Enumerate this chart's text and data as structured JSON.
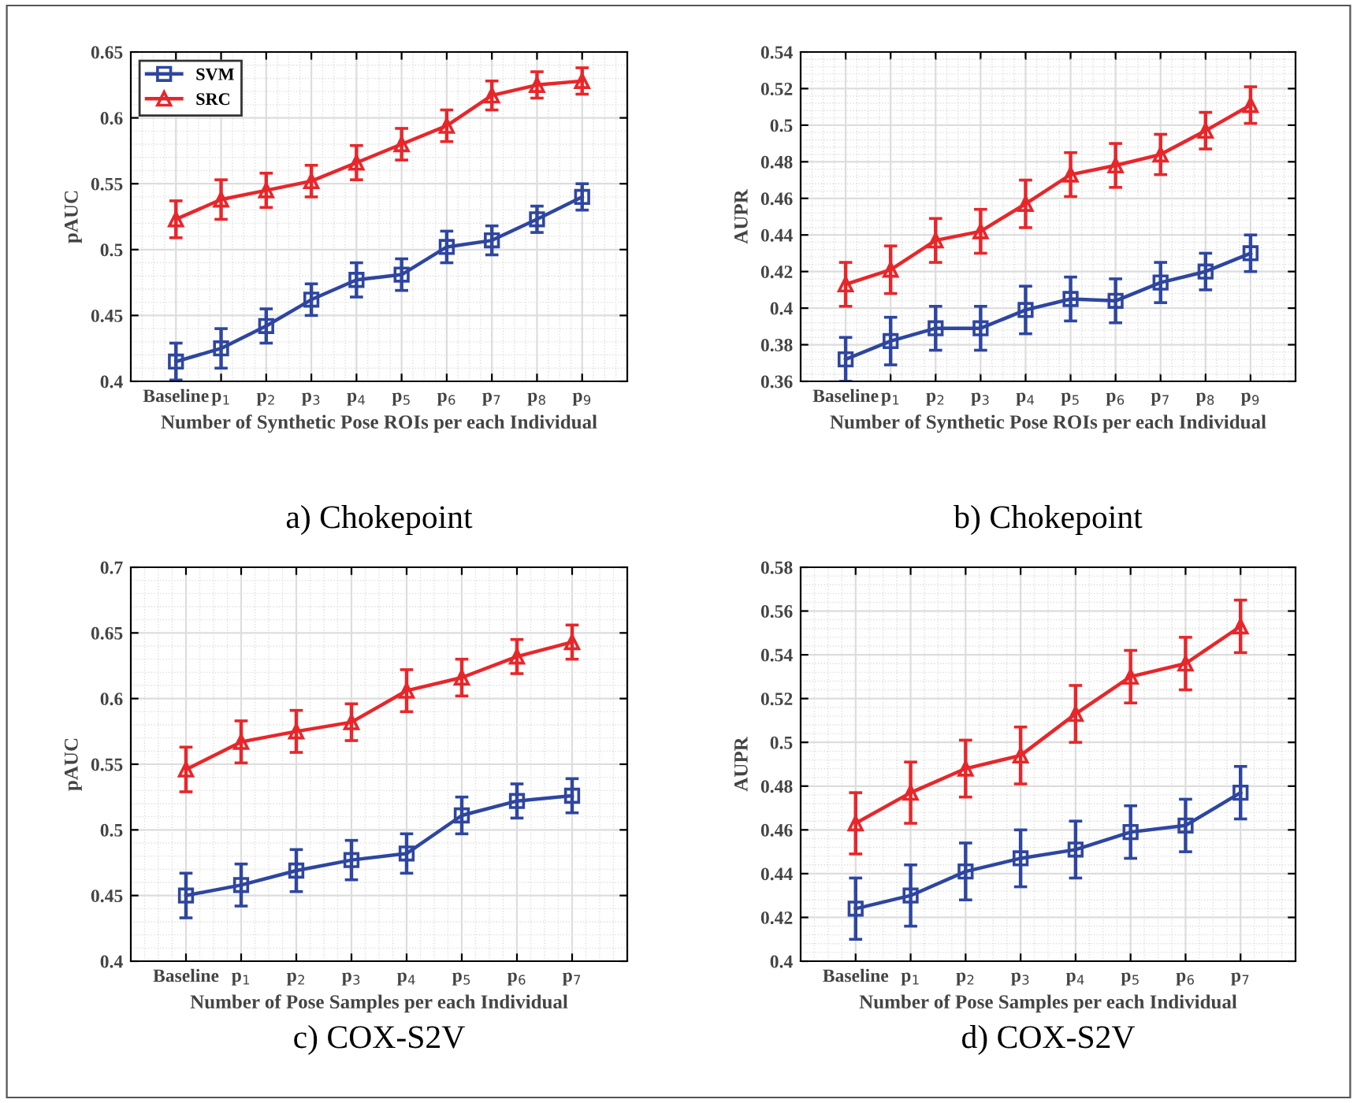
{
  "chart_data": [
    {
      "type": "line",
      "title": "a) Chokepoint",
      "xlabel": "Number of Synthetic Pose ROIs per each Individual",
      "ylabel": "pAUC",
      "categories": [
        "Baseline",
        "p$_{1}$",
        "p$_{2}$",
        "p$_{3}$",
        "p$_{4}$",
        "p$_{5}$",
        "p$_{6}$",
        "p$_{7}$",
        "p$_{8}$",
        "p$_{9}$"
      ],
      "ylim": [
        0.4,
        0.65
      ],
      "yticks": [
        0.4,
        0.45,
        0.5,
        0.55,
        0.6,
        0.65
      ],
      "grid": true,
      "legend": "top left",
      "series": [
        {
          "name": "SVM",
          "color": "#2e46a0",
          "marker": "square",
          "values": [
            0.415,
            0.425,
            0.442,
            0.462,
            0.477,
            0.481,
            0.502,
            0.507,
            0.523,
            0.54
          ],
          "errors": [
            0.014,
            0.015,
            0.013,
            0.012,
            0.013,
            0.012,
            0.012,
            0.011,
            0.01,
            0.01
          ]
        },
        {
          "name": "SRC",
          "color": "#e8262a",
          "marker": "triangle",
          "values": [
            0.523,
            0.538,
            0.545,
            0.552,
            0.566,
            0.58,
            0.594,
            0.617,
            0.625,
            0.628
          ],
          "errors": [
            0.014,
            0.015,
            0.013,
            0.012,
            0.013,
            0.012,
            0.012,
            0.011,
            0.01,
            0.01
          ]
        }
      ]
    },
    {
      "type": "line",
      "title": "b) Chokepoint",
      "xlabel": "Number of Synthetic Pose ROIs per each Individual",
      "ylabel": "AUPR",
      "categories": [
        "Baseline",
        "p$_{1}$",
        "p$_{2}$",
        "p$_{3}$",
        "p$_{4}$",
        "p$_{5}$",
        "p$_{6}$",
        "p$_{7}$",
        "p$_{8}$",
        "p$_{9}$"
      ],
      "ylim": [
        0.36,
        0.54
      ],
      "yticks": [
        0.36,
        0.38,
        0.4,
        0.42,
        0.44,
        0.46,
        0.48,
        0.5,
        0.52,
        0.54
      ],
      "grid": true,
      "series": [
        {
          "color": "#2e46a0",
          "marker": "square",
          "values": [
            0.372,
            0.382,
            0.389,
            0.389,
            0.399,
            0.405,
            0.404,
            0.414,
            0.42,
            0.43
          ],
          "errors": [
            0.012,
            0.013,
            0.012,
            0.012,
            0.013,
            0.012,
            0.012,
            0.011,
            0.01,
            0.01
          ]
        },
        {
          "color": "#e8262a",
          "marker": "triangle",
          "values": [
            0.413,
            0.421,
            0.437,
            0.442,
            0.457,
            0.473,
            0.478,
            0.484,
            0.497,
            0.511
          ],
          "errors": [
            0.012,
            0.013,
            0.012,
            0.012,
            0.013,
            0.012,
            0.012,
            0.011,
            0.01,
            0.01
          ]
        }
      ]
    },
    {
      "type": "line",
      "title": "c) COX-S2V",
      "xlabel": "Number of Pose Samples per each Individual",
      "ylabel": "pAUC",
      "categories": [
        "Baseline",
        "p$_{1}$",
        "p$_{2}$",
        "p$_{3}$",
        "p$_{4}$",
        "p$_{5}$",
        "p$_{6}$",
        "p$_{7}$"
      ],
      "ylim": [
        0.4,
        0.7
      ],
      "yticks": [
        0.4,
        0.45,
        0.5,
        0.55,
        0.6,
        0.65,
        0.7
      ],
      "grid": true,
      "series": [
        {
          "color": "#2e46a0",
          "marker": "square",
          "values": [
            0.45,
            0.458,
            0.469,
            0.477,
            0.482,
            0.511,
            0.522,
            0.526
          ],
          "errors": [
            0.017,
            0.016,
            0.016,
            0.015,
            0.015,
            0.014,
            0.013,
            0.013
          ]
        },
        {
          "color": "#e8262a",
          "marker": "triangle",
          "values": [
            0.546,
            0.567,
            0.575,
            0.582,
            0.606,
            0.616,
            0.632,
            0.643
          ],
          "errors": [
            0.017,
            0.016,
            0.016,
            0.014,
            0.016,
            0.014,
            0.013,
            0.013
          ]
        }
      ]
    },
    {
      "type": "line",
      "title": "d) COX-S2V",
      "xlabel": "Number of Pose Samples per each Individual",
      "ylabel": "AUPR",
      "categories": [
        "Baseline",
        "p$_{1}$",
        "p$_{2}$",
        "p$_{3}$",
        "p$_{4}$",
        "p$_{5}$",
        "p$_{6}$",
        "p$_{7}$"
      ],
      "ylim": [
        0.4,
        0.58
      ],
      "yticks": [
        0.4,
        0.42,
        0.44,
        0.46,
        0.48,
        0.5,
        0.52,
        0.54,
        0.56,
        0.58
      ],
      "grid": true,
      "series": [
        {
          "color": "#2e46a0",
          "marker": "square",
          "values": [
            0.424,
            0.43,
            0.441,
            0.447,
            0.451,
            0.459,
            0.462,
            0.477
          ],
          "errors": [
            0.014,
            0.014,
            0.013,
            0.013,
            0.013,
            0.012,
            0.012,
            0.012
          ]
        },
        {
          "color": "#e8262a",
          "marker": "triangle",
          "values": [
            0.463,
            0.477,
            0.488,
            0.494,
            0.513,
            0.53,
            0.536,
            0.553
          ],
          "errors": [
            0.014,
            0.014,
            0.013,
            0.013,
            0.013,
            0.012,
            0.012,
            0.012
          ]
        }
      ]
    }
  ]
}
